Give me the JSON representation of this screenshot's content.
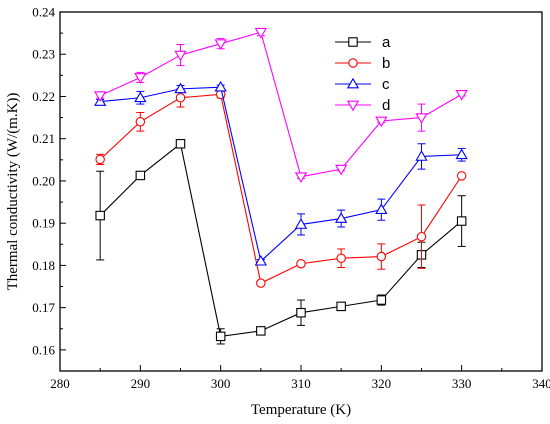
{
  "chart_data": {
    "type": "line",
    "xlabel": "Temperature (K)",
    "ylabel": "Thermal conductivity (W/(m.K))",
    "xlim": [
      280,
      340
    ],
    "ylim": [
      0.155,
      0.24
    ],
    "x_ticks": [
      "280",
      "290",
      "300",
      "310",
      "320",
      "330",
      "340"
    ],
    "y_ticks": [
      "0.16",
      "0.17",
      "0.18",
      "0.19",
      "0.20",
      "0.21",
      "0.22",
      "0.23",
      "0.24"
    ],
    "x": [
      285,
      290,
      295,
      300,
      305,
      310,
      315,
      320,
      325,
      330
    ],
    "grid": false,
    "legend_position": "top-right",
    "series": [
      {
        "name": "a",
        "color": "#000000",
        "marker": "square",
        "values": [
          0.1918,
          0.2013,
          0.2088,
          0.1632,
          0.1645,
          0.1688,
          0.1703,
          0.1718,
          0.1825,
          0.1905
        ],
        "errors": [
          0.0105,
          0.0005,
          0.0008,
          0.0018,
          0.0005,
          0.003,
          0.0006,
          0.0012,
          0.003,
          0.006
        ]
      },
      {
        "name": "b",
        "color": "#ff0000",
        "marker": "circle",
        "values": [
          0.2051,
          0.214,
          0.2197,
          0.2205,
          0.1758,
          0.1804,
          0.1817,
          0.1821,
          0.1868,
          0.2012
        ],
        "errors": [
          0.0012,
          0.0022,
          0.0022,
          0.0008,
          0.0004,
          0.0004,
          0.0022,
          0.003,
          0.0075,
          0.0003
        ]
      },
      {
        "name": "c",
        "color": "#0000ff",
        "marker": "triangle-up",
        "values": [
          0.2188,
          0.2197,
          0.2218,
          0.2222,
          0.181,
          0.1897,
          0.1911,
          0.1932,
          0.2058,
          0.2062
        ],
        "errors": [
          0.0005,
          0.0015,
          0.0008,
          0.0005,
          0.0004,
          0.0025,
          0.002,
          0.0025,
          0.003,
          0.0015
        ]
      },
      {
        "name": "d",
        "color": "#ff00ff",
        "marker": "triangle-down",
        "values": [
          0.2202,
          0.2245,
          0.2298,
          0.2325,
          0.2352,
          0.201,
          0.2028,
          0.2142,
          0.215,
          0.2205
        ],
        "errors": [
          0.0006,
          0.0012,
          0.0025,
          0.0012,
          0.0008,
          0.0004,
          0.0004,
          0.0004,
          0.0032,
          0.0004
        ]
      }
    ]
  }
}
